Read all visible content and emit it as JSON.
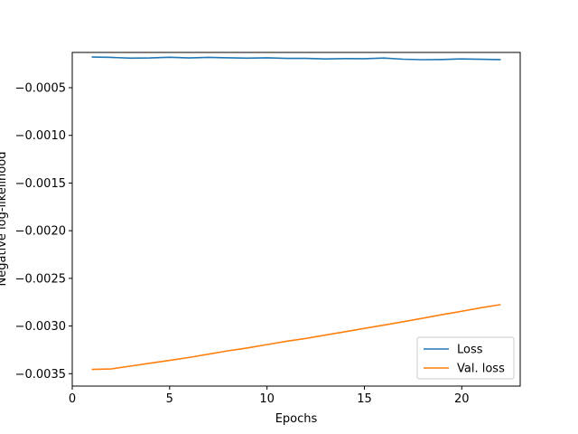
{
  "chart_data": {
    "type": "line",
    "title": "",
    "xlabel": "Epochs",
    "ylabel": "Negative log-likelihood",
    "xlim": [
      0,
      23
    ],
    "ylim": [
      -0.00363,
      -0.00013
    ],
    "xticks": [
      0,
      5,
      10,
      15,
      20
    ],
    "xtick_labels": [
      "0",
      "5",
      "10",
      "15",
      "20"
    ],
    "yticks": [
      -0.0005,
      -0.001,
      -0.0015,
      -0.002,
      -0.0025,
      -0.003,
      -0.0035
    ],
    "ytick_labels": [
      "−0.0005",
      "−0.0010",
      "−0.0015",
      "−0.0020",
      "−0.0025",
      "−0.0030",
      "−0.0035"
    ],
    "grid": false,
    "legend_position": "lower-right",
    "series": [
      {
        "name": "Loss",
        "color": "#1f77b4",
        "x": [
          1,
          2,
          3,
          4,
          5,
          6,
          7,
          8,
          9,
          10,
          11,
          12,
          13,
          14,
          15,
          16,
          17,
          18,
          19,
          20,
          21,
          22
        ],
        "y": [
          -0.000178,
          -0.000182,
          -0.00019,
          -0.000188,
          -0.00018,
          -0.000188,
          -0.000182,
          -0.000186,
          -0.00019,
          -0.000186,
          -0.000192,
          -0.000192,
          -0.000198,
          -0.000195,
          -0.000196,
          -0.000189,
          -0.000201,
          -0.000206,
          -0.000204,
          -0.000198,
          -0.000202,
          -0.000205
        ]
      },
      {
        "name": "Val. loss",
        "color": "#ff7f0e",
        "x": [
          1,
          2,
          3,
          4,
          5,
          6,
          7,
          8,
          9,
          10,
          11,
          12,
          13,
          14,
          15,
          16,
          17,
          18,
          19,
          20,
          21,
          22
        ],
        "y": [
          -0.003455,
          -0.00345,
          -0.00342,
          -0.00339,
          -0.00336,
          -0.00333,
          -0.003295,
          -0.00326,
          -0.00323,
          -0.003195,
          -0.00316,
          -0.00313,
          -0.003095,
          -0.00306,
          -0.003025,
          -0.00299,
          -0.002955,
          -0.002918,
          -0.00288,
          -0.002845,
          -0.002808,
          -0.002775
        ]
      }
    ]
  }
}
